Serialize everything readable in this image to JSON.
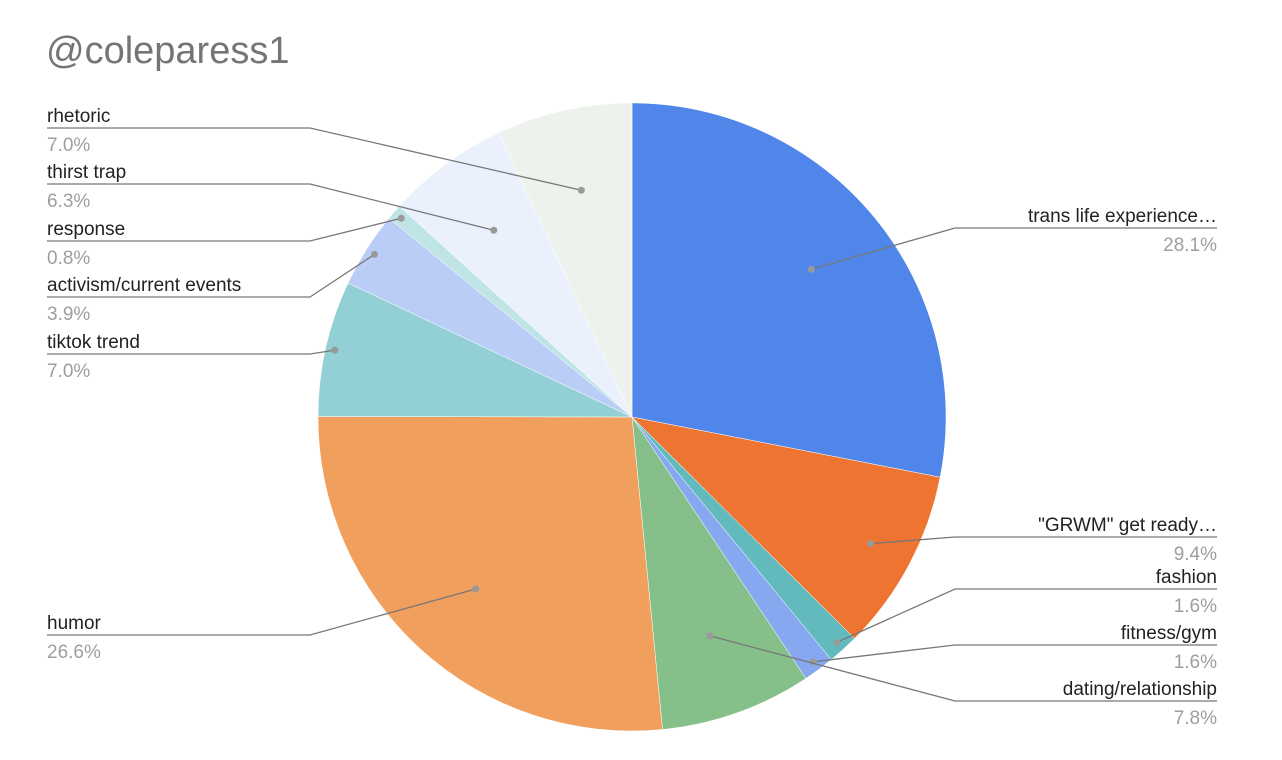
{
  "chart_data": {
    "type": "pie",
    "title": "@coleparess1",
    "slices": [
      {
        "label": "trans life experience…",
        "pct_label": "28.1%",
        "value": 28.1,
        "color": "#5086EA"
      },
      {
        "label": "\"GRWM\" get ready…",
        "pct_label": "9.4%",
        "value": 9.4,
        "color": "#ED7431"
      },
      {
        "label": "fashion",
        "pct_label": "1.6%",
        "value": 1.6,
        "color": "#63BABD"
      },
      {
        "label": "fitness/gym",
        "pct_label": "1.6%",
        "value": 1.6,
        "color": "#86A8F1"
      },
      {
        "label": "dating/relationship",
        "pct_label": "7.8%",
        "value": 7.8,
        "color": "#85BF8A"
      },
      {
        "label": "humor",
        "pct_label": "26.6%",
        "value": 26.6,
        "color": "#F0A05C"
      },
      {
        "label": "tiktok trend",
        "pct_label": "7.0%",
        "value": 7.0,
        "color": "#93D0D5"
      },
      {
        "label": "activism/current events",
        "pct_label": "3.9%",
        "value": 3.9,
        "color": "#BACDF7"
      },
      {
        "label": "response",
        "pct_label": "0.8%",
        "value": 0.8,
        "color": "#BFE4E5"
      },
      {
        "label": "thirst trap",
        "pct_label": "6.3%",
        "value": 6.3,
        "color": "#EAF0FC"
      },
      {
        "label": "rhetoric",
        "pct_label": "7.0%",
        "value": 7.0,
        "color": "#EDF3EC"
      }
    ],
    "legend": "none"
  }
}
